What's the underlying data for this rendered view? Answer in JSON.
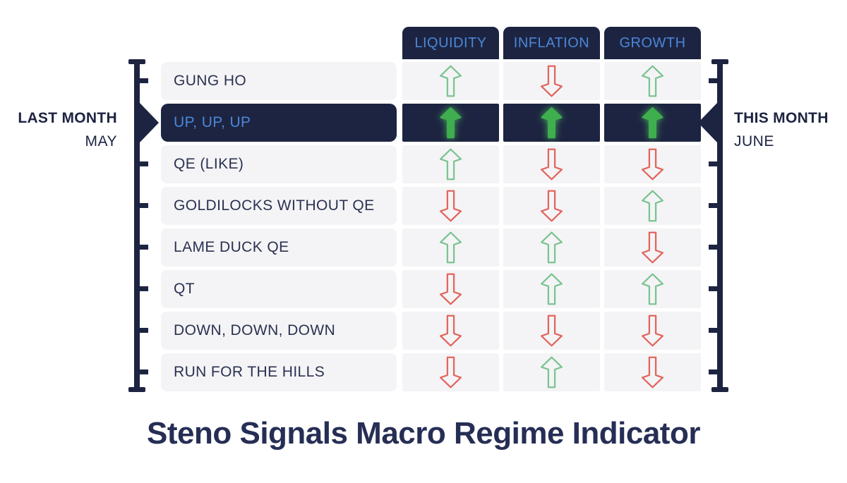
{
  "title": "Steno Signals Macro Regime Indicator",
  "chart_data": {
    "type": "table",
    "title": "Steno Signals Macro Regime Indicator",
    "columns": [
      "LIQUIDITY",
      "INFLATION",
      "GROWTH"
    ],
    "rows": [
      {
        "label": "GUNG HO",
        "signals": [
          "up",
          "down",
          "up"
        ],
        "highlighted": false
      },
      {
        "label": "UP, UP, UP",
        "signals": [
          "up",
          "up",
          "up"
        ],
        "highlighted": true
      },
      {
        "label": "QE (LIKE)",
        "signals": [
          "up",
          "down",
          "down"
        ],
        "highlighted": false
      },
      {
        "label": "GOLDILOCKS WITHOUT QE",
        "signals": [
          "down",
          "down",
          "up"
        ],
        "highlighted": false
      },
      {
        "label": "LAME DUCK QE",
        "signals": [
          "up",
          "up",
          "down"
        ],
        "highlighted": false
      },
      {
        "label": "QT",
        "signals": [
          "down",
          "up",
          "up"
        ],
        "highlighted": false
      },
      {
        "label": "DOWN, DOWN, DOWN",
        "signals": [
          "down",
          "down",
          "down"
        ],
        "highlighted": false
      },
      {
        "label": "RUN FOR THE HILLS",
        "signals": [
          "down",
          "up",
          "down"
        ],
        "highlighted": false
      }
    ],
    "legend_position": "none",
    "annotations": [
      {
        "side": "left",
        "text": "LAST MONTH / MAY",
        "points_to_row": "UP, UP, UP"
      },
      {
        "side": "right",
        "text": "THIS MONTH / JUNE",
        "points_to_row": "UP, UP, UP"
      }
    ]
  },
  "left_marker": {
    "title": "LAST MONTH",
    "month": "MAY",
    "points_to_row": "UP, UP, UP"
  },
  "right_marker": {
    "title": "THIS MONTH",
    "month": "JUNE",
    "points_to_row": "UP, UP, UP"
  },
  "icons": {
    "up": "arrow-up-icon",
    "down": "arrow-down-icon"
  },
  "colors": {
    "navy": "#1d2441",
    "accent_blue": "#4a87d9",
    "row_bg": "#f4f4f6",
    "label_text": "#2b3150",
    "green_outline": "#7cc492",
    "red_outline": "#e2665f",
    "green_solid": "#3fae4e",
    "title_navy": "#262e55"
  }
}
